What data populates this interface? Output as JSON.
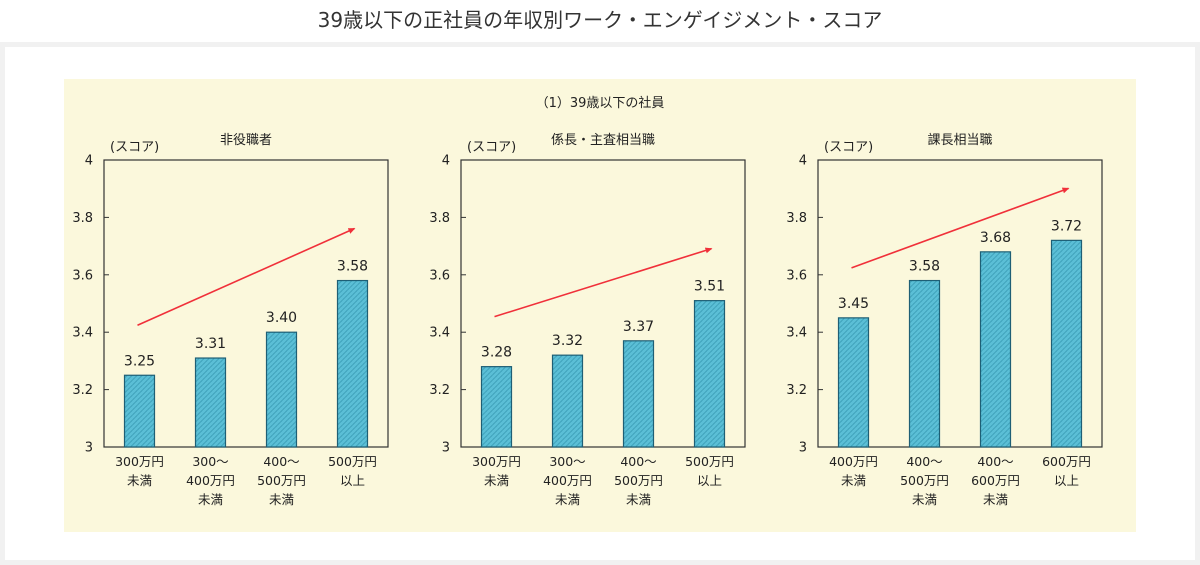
{
  "page": {
    "title": "39歳以下の正社員の年収別ワーク・エンゲイジメント・スコア",
    "figure_subtitle": "（1）39歳以下の社員"
  },
  "colors": {
    "bar_fill": "#5bbfd6",
    "bar_stroke": "#1e5f75",
    "trend_arrow": "#f0303a",
    "panel_background": "#fbf8dc"
  },
  "chart_data": [
    {
      "type": "bar",
      "title": "非役職者",
      "ylabel": "(スコア)",
      "xlabel": "",
      "ylim": [
        3,
        4
      ],
      "yticks": [
        "3",
        "3.2",
        "3.4",
        "3.6",
        "3.8",
        "4"
      ],
      "categories": [
        [
          "300万円",
          "未満"
        ],
        [
          "300～",
          "400万円",
          "未満"
        ],
        [
          "400～",
          "500万円",
          "未満"
        ],
        [
          "500万円",
          "以上"
        ]
      ],
      "values": [
        3.25,
        3.31,
        3.4,
        3.58
      ],
      "value_labels": [
        "3.25",
        "3.31",
        "3.40",
        "3.58"
      ],
      "trend_arrow": true,
      "grid": false
    },
    {
      "type": "bar",
      "title": "係長・主査相当職",
      "ylabel": "(スコア)",
      "xlabel": "",
      "ylim": [
        3,
        4
      ],
      "yticks": [
        "3",
        "3.2",
        "3.4",
        "3.6",
        "3.8",
        "4"
      ],
      "categories": [
        [
          "300万円",
          "未満"
        ],
        [
          "300～",
          "400万円",
          "未満"
        ],
        [
          "400～",
          "500万円",
          "未満"
        ],
        [
          "500万円",
          "以上"
        ]
      ],
      "values": [
        3.28,
        3.32,
        3.37,
        3.51
      ],
      "value_labels": [
        "3.28",
        "3.32",
        "3.37",
        "3.51"
      ],
      "trend_arrow": true,
      "grid": false
    },
    {
      "type": "bar",
      "title": "課長相当職",
      "ylabel": "(スコア)",
      "xlabel": "",
      "ylim": [
        3,
        4
      ],
      "yticks": [
        "3",
        "3.2",
        "3.4",
        "3.6",
        "3.8",
        "4"
      ],
      "categories": [
        [
          "400万円",
          "未満"
        ],
        [
          "400～",
          "500万円",
          "未満"
        ],
        [
          "400～",
          "600万円",
          "未満"
        ],
        [
          "600万円",
          "以上"
        ]
      ],
      "values": [
        3.45,
        3.58,
        3.68,
        3.72
      ],
      "value_labels": [
        "3.45",
        "3.58",
        "3.68",
        "3.72"
      ],
      "trend_arrow": true,
      "grid": false
    }
  ]
}
